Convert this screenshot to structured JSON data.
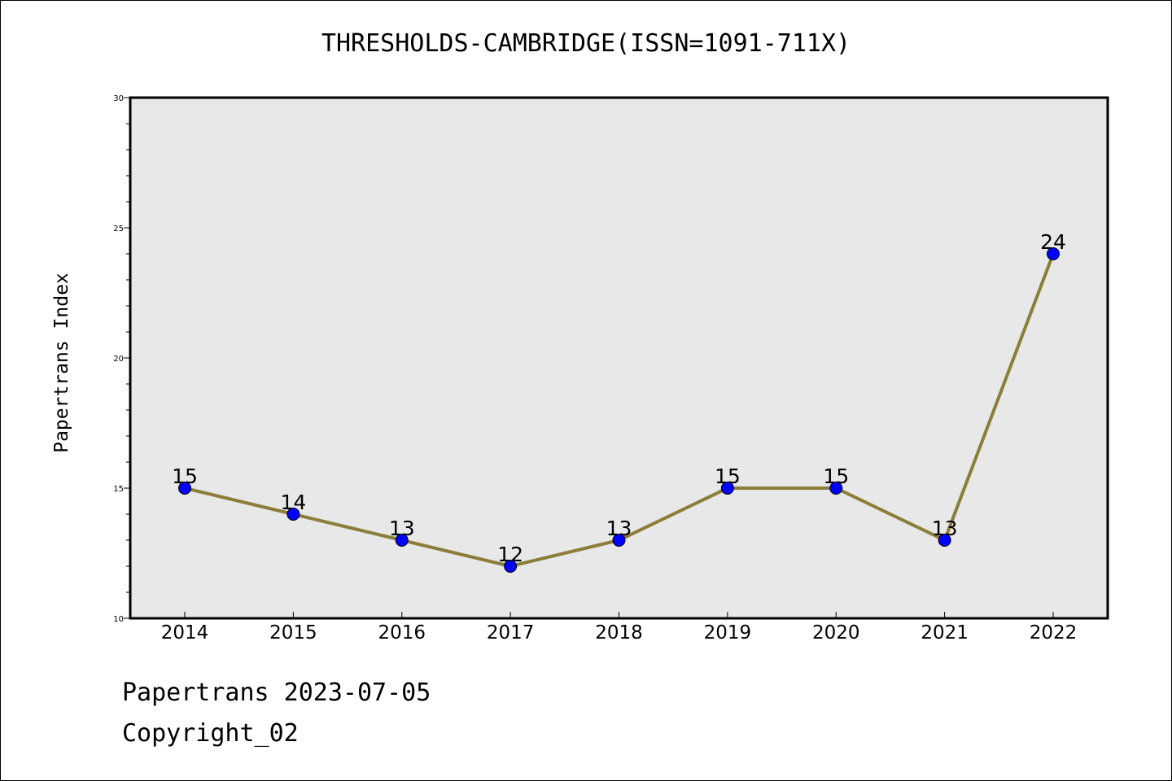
{
  "chart_data": {
    "type": "line",
    "title": "THRESHOLDS-CAMBRIDGE(ISSN=1091-711X)",
    "xlabel": "",
    "ylabel": "Papertrans Index",
    "categories": [
      "2014",
      "2015",
      "2016",
      "2017",
      "2018",
      "2019",
      "2020",
      "2021",
      "2022"
    ],
    "series": [
      {
        "values": [
          15,
          14,
          13,
          12,
          13,
          15,
          15,
          13,
          24
        ],
        "line_color": "#8b7d3a",
        "marker_color": "#0000ff"
      }
    ],
    "data_labels": [
      "15",
      "14",
      "13",
      "12",
      "13",
      "15",
      "15",
      "13",
      "24"
    ],
    "ylim": [
      10,
      30
    ],
    "y_ticks": [
      10,
      15,
      20,
      25,
      30
    ],
    "grid": false,
    "plot_background": "#e8e8e8"
  },
  "footer": {
    "date_line": "Papertrans 2023-07-05",
    "copyright_line": "Copyright_02"
  }
}
